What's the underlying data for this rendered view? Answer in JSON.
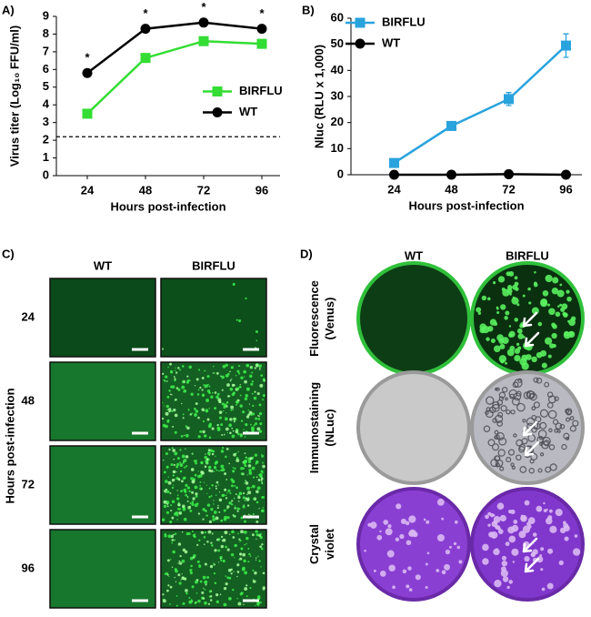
{
  "chart_data": [
    {
      "type": "line",
      "panel_label": "A)",
      "xlabel": "Hours post-infection",
      "ylabel": "Virus titer (Log₁₀ FFU/ml)",
      "categories": [
        "24",
        "48",
        "72",
        "96"
      ],
      "series": [
        {
          "name": "BIRFLU",
          "color": "#33dd33",
          "marker": "square",
          "values": [
            3.5,
            6.65,
            7.6,
            7.45
          ],
          "errors": [
            0.05,
            0.1,
            0.1,
            0.1
          ]
        },
        {
          "name": "WT",
          "color": "#000000",
          "marker": "circle",
          "values": [
            5.8,
            8.3,
            8.65,
            8.3
          ],
          "errors": [
            0.05,
            0.15,
            0.15,
            0.1
          ]
        }
      ],
      "annotations": [
        "*",
        "*",
        "*",
        "*"
      ],
      "reference_line": 2.2,
      "ylim": [
        0,
        9
      ],
      "yticks": [
        0,
        1,
        2,
        3,
        4,
        5,
        6,
        7,
        8,
        9
      ],
      "legend": "center right"
    },
    {
      "type": "line",
      "panel_label": "B)",
      "xlabel": "Hours post-infection",
      "ylabel": "Nluc (RLU x 1,000)",
      "categories": [
        "24",
        "48",
        "72",
        "96"
      ],
      "series": [
        {
          "name": "BIRFLU",
          "color": "#29a3dd",
          "marker": "square",
          "values": [
            4.5,
            18.7,
            29,
            49.5
          ],
          "errors": [
            1,
            1,
            2.5,
            4.5
          ]
        },
        {
          "name": "WT",
          "color": "#000000",
          "marker": "circle",
          "values": [
            0,
            0,
            0.2,
            0
          ],
          "errors": [
            0,
            0,
            0,
            0
          ]
        }
      ],
      "ylim": [
        0,
        60
      ],
      "yticks": [
        0,
        10,
        20,
        30,
        40,
        50,
        60
      ],
      "legend": "upper left"
    }
  ],
  "panel_c": {
    "label": "C)",
    "columns": [
      "WT",
      "BIRFLU"
    ],
    "rows": [
      "24",
      "48",
      "72",
      "96"
    ],
    "row_axis_label": "Hours post-infection"
  },
  "panel_d": {
    "label": "D)",
    "columns": [
      "WT",
      "BIRFLU"
    ],
    "rows": [
      [
        "Fluorescence",
        "(Venus)"
      ],
      [
        "Immunostaining",
        "(NLuc)"
      ],
      [
        "Crystal",
        "violet"
      ]
    ]
  }
}
